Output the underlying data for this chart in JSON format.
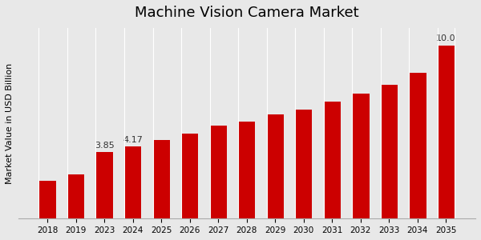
{
  "title": "Machine Vision Camera Market",
  "ylabel": "Market Value in USD Billion",
  "categories": [
    "2018",
    "2019",
    "2023",
    "2024",
    "2025",
    "2026",
    "2027",
    "2028",
    "2029",
    "2030",
    "2031",
    "2032",
    "2033",
    "2034",
    "2035"
  ],
  "values": [
    2.2,
    2.55,
    3.85,
    4.17,
    4.55,
    4.9,
    5.35,
    5.6,
    6.0,
    6.3,
    6.75,
    7.2,
    7.7,
    8.4,
    10.0
  ],
  "bar_color": "#cc0000",
  "bg_color": "#e8e8e8",
  "annotated_bars": {
    "2023": "3.85",
    "2024": "4.17",
    "2035": "10.0"
  },
  "ylim": [
    0,
    11
  ],
  "title_fontsize": 13,
  "label_fontsize": 8,
  "tick_fontsize": 7.5
}
